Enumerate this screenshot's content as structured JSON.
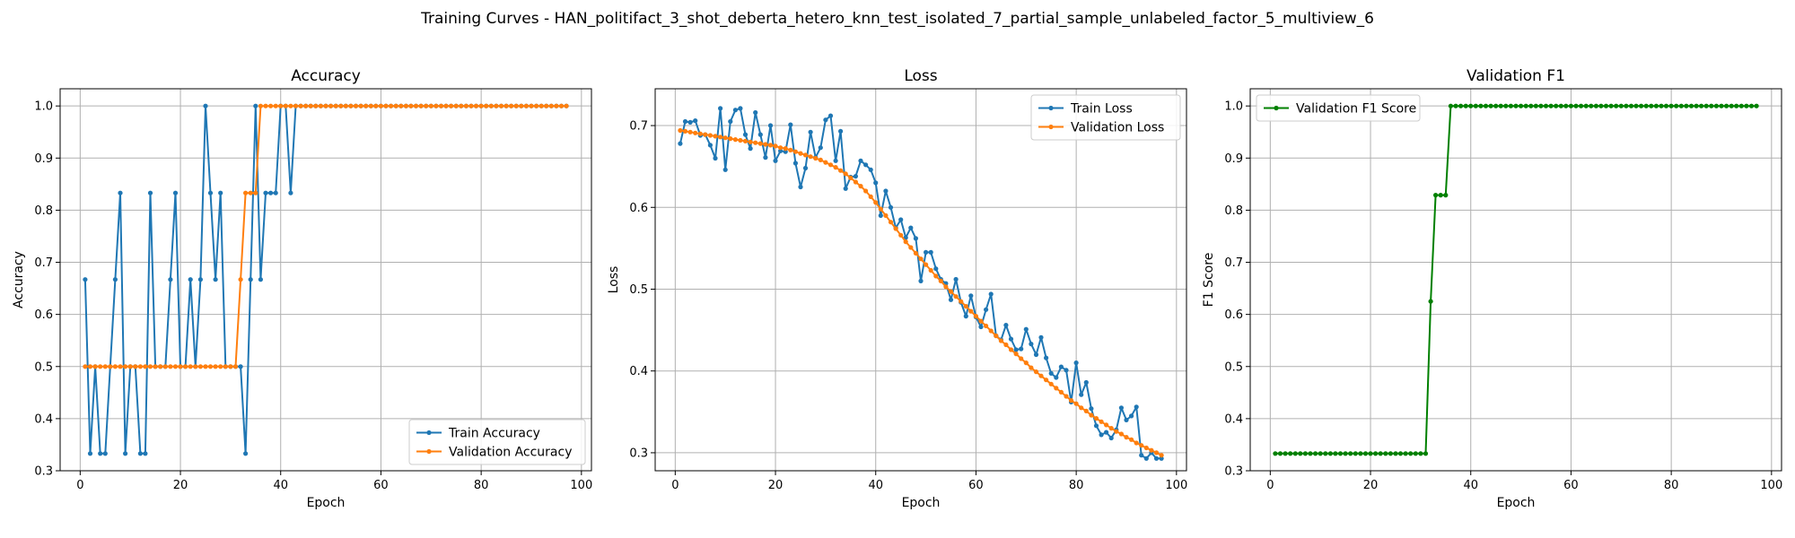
{
  "figure": {
    "suptitle": "Training Curves - HAN_politifact_3_shot_deberta_hetero_knn_test_isolated_7_partial_sample_unlabeled_factor_5_multiview_6"
  },
  "colors": {
    "blue": "#1f77b4",
    "orange": "#ff7f0e",
    "green": "#008000",
    "grid": "#b0b0b0"
  },
  "chart_data": [
    {
      "type": "line",
      "title": "Accuracy",
      "xlabel": "Epoch",
      "ylabel": "Accuracy",
      "xlim": [
        -4,
        102
      ],
      "ylim": [
        0.3,
        1.033
      ],
      "xticks": [
        0,
        20,
        40,
        60,
        80,
        100
      ],
      "yticks": [
        0.3,
        0.4,
        0.5,
        0.6,
        0.7,
        0.8,
        0.9,
        1.0
      ],
      "grid": true,
      "legend": "lower-right",
      "series": [
        {
          "name": "Train Accuracy",
          "color": "#1f77b4",
          "x": [
            1,
            2,
            3,
            4,
            5,
            6,
            7,
            8,
            9,
            10,
            11,
            12,
            13,
            14,
            15,
            16,
            17,
            18,
            19,
            20,
            21,
            22,
            23,
            24,
            25,
            26,
            27,
            28,
            29,
            30,
            31,
            32,
            33,
            34,
            35,
            36,
            37,
            38,
            39,
            40,
            41,
            42,
            43,
            44,
            45,
            46,
            47,
            48,
            49,
            50,
            51,
            52,
            53,
            54,
            55,
            56,
            57,
            58,
            59,
            60,
            61,
            62,
            63,
            64,
            65,
            66,
            67,
            68,
            69,
            70,
            71,
            72,
            73,
            74,
            75,
            76,
            77,
            78,
            79,
            80,
            81,
            82,
            83,
            84,
            85,
            86,
            87,
            88,
            89,
            90,
            91,
            92,
            93,
            94,
            95,
            96,
            97
          ],
          "y": [
            0.667,
            0.333,
            0.5,
            0.333,
            0.333,
            0.5,
            0.667,
            0.833,
            0.333,
            0.5,
            0.5,
            0.333,
            0.333,
            0.833,
            0.5,
            0.5,
            0.5,
            0.667,
            0.833,
            0.5,
            0.5,
            0.667,
            0.5,
            0.667,
            1.0,
            0.833,
            0.667,
            0.833,
            0.5,
            0.5,
            0.5,
            0.5,
            0.333,
            0.667,
            1.0,
            0.667,
            0.833,
            0.833,
            0.833,
            1.0,
            1.0,
            0.833,
            1.0,
            1.0,
            1.0,
            1.0,
            1.0,
            1.0,
            1.0,
            1.0,
            1.0,
            1.0,
            1.0,
            1.0,
            1.0,
            1.0,
            1.0,
            1.0,
            1.0,
            1.0,
            1.0,
            1.0,
            1.0,
            1.0,
            1.0,
            1.0,
            1.0,
            1.0,
            1.0,
            1.0,
            1.0,
            1.0,
            1.0,
            1.0,
            1.0,
            1.0,
            1.0,
            1.0,
            1.0,
            1.0,
            1.0,
            1.0,
            1.0,
            1.0,
            1.0,
            1.0,
            1.0,
            1.0,
            1.0,
            1.0,
            1.0,
            1.0,
            1.0,
            1.0,
            1.0,
            1.0,
            1.0
          ]
        },
        {
          "name": "Validation Accuracy",
          "color": "#ff7f0e",
          "x": [
            1,
            2,
            3,
            4,
            5,
            6,
            7,
            8,
            9,
            10,
            11,
            12,
            13,
            14,
            15,
            16,
            17,
            18,
            19,
            20,
            21,
            22,
            23,
            24,
            25,
            26,
            27,
            28,
            29,
            30,
            31,
            32,
            33,
            34,
            35,
            36,
            37,
            38,
            39,
            40,
            41,
            42,
            43,
            44,
            45,
            46,
            47,
            48,
            49,
            50,
            51,
            52,
            53,
            54,
            55,
            56,
            57,
            58,
            59,
            60,
            61,
            62,
            63,
            64,
            65,
            66,
            67,
            68,
            69,
            70,
            71,
            72,
            73,
            74,
            75,
            76,
            77,
            78,
            79,
            80,
            81,
            82,
            83,
            84,
            85,
            86,
            87,
            88,
            89,
            90,
            91,
            92,
            93,
            94,
            95,
            96,
            97
          ],
          "y": [
            0.5,
            0.5,
            0.5,
            0.5,
            0.5,
            0.5,
            0.5,
            0.5,
            0.5,
            0.5,
            0.5,
            0.5,
            0.5,
            0.5,
            0.5,
            0.5,
            0.5,
            0.5,
            0.5,
            0.5,
            0.5,
            0.5,
            0.5,
            0.5,
            0.5,
            0.5,
            0.5,
            0.5,
            0.5,
            0.5,
            0.5,
            0.667,
            0.833,
            0.833,
            0.833,
            1.0,
            1.0,
            1.0,
            1.0,
            1.0,
            1.0,
            1.0,
            1.0,
            1.0,
            1.0,
            1.0,
            1.0,
            1.0,
            1.0,
            1.0,
            1.0,
            1.0,
            1.0,
            1.0,
            1.0,
            1.0,
            1.0,
            1.0,
            1.0,
            1.0,
            1.0,
            1.0,
            1.0,
            1.0,
            1.0,
            1.0,
            1.0,
            1.0,
            1.0,
            1.0,
            1.0,
            1.0,
            1.0,
            1.0,
            1.0,
            1.0,
            1.0,
            1.0,
            1.0,
            1.0,
            1.0,
            1.0,
            1.0,
            1.0,
            1.0,
            1.0,
            1.0,
            1.0,
            1.0,
            1.0,
            1.0,
            1.0,
            1.0,
            1.0,
            1.0,
            1.0,
            1.0
          ]
        }
      ]
    },
    {
      "type": "line",
      "title": "Loss",
      "xlabel": "Epoch",
      "ylabel": "Loss",
      "xlim": [
        -4,
        102
      ],
      "ylim": [
        0.278,
        0.745
      ],
      "xticks": [
        0,
        20,
        40,
        60,
        80,
        100
      ],
      "yticks": [
        0.3,
        0.4,
        0.5,
        0.6,
        0.7
      ],
      "grid": true,
      "legend": "upper-right",
      "series": [
        {
          "name": "Train Loss",
          "color": "#1f77b4",
          "x": [
            1,
            2,
            3,
            4,
            5,
            6,
            7,
            8,
            9,
            10,
            11,
            12,
            13,
            14,
            15,
            16,
            17,
            18,
            19,
            20,
            21,
            22,
            23,
            24,
            25,
            26,
            27,
            28,
            29,
            30,
            31,
            32,
            33,
            34,
            35,
            36,
            37,
            38,
            39,
            40,
            41,
            42,
            43,
            44,
            45,
            46,
            47,
            48,
            49,
            50,
            51,
            52,
            53,
            54,
            55,
            56,
            57,
            58,
            59,
            60,
            61,
            62,
            63,
            64,
            65,
            66,
            67,
            68,
            69,
            70,
            71,
            72,
            73,
            74,
            75,
            76,
            77,
            78,
            79,
            80,
            81,
            82,
            83,
            84,
            85,
            86,
            87,
            88,
            89,
            90,
            91,
            92,
            93,
            94,
            95,
            96,
            97
          ],
          "y": [
            0.678,
            0.705,
            0.704,
            0.706,
            0.688,
            0.689,
            0.676,
            0.66,
            0.721,
            0.646,
            0.705,
            0.719,
            0.721,
            0.689,
            0.672,
            0.716,
            0.689,
            0.661,
            0.7,
            0.657,
            0.669,
            0.668,
            0.701,
            0.654,
            0.625,
            0.648,
            0.692,
            0.661,
            0.673,
            0.707,
            0.712,
            0.657,
            0.693,
            0.623,
            0.637,
            0.638,
            0.657,
            0.652,
            0.646,
            0.63,
            0.59,
            0.62,
            0.6,
            0.575,
            0.585,
            0.563,
            0.575,
            0.562,
            0.51,
            0.545,
            0.545,
            0.525,
            0.512,
            0.507,
            0.487,
            0.512,
            0.484,
            0.467,
            0.492,
            0.466,
            0.454,
            0.475,
            0.494,
            0.443,
            0.438,
            0.456,
            0.439,
            0.426,
            0.427,
            0.451,
            0.433,
            0.42,
            0.441,
            0.416,
            0.397,
            0.392,
            0.405,
            0.401,
            0.362,
            0.41,
            0.371,
            0.386,
            0.354,
            0.333,
            0.322,
            0.325,
            0.318,
            0.328,
            0.355,
            0.34,
            0.345,
            0.356,
            0.297,
            0.293,
            0.3,
            0.293,
            0.293
          ]
        },
        {
          "name": "Validation Loss",
          "color": "#ff7f0e",
          "x": [
            1,
            2,
            3,
            4,
            5,
            6,
            7,
            8,
            9,
            10,
            11,
            12,
            13,
            14,
            15,
            16,
            17,
            18,
            19,
            20,
            21,
            22,
            23,
            24,
            25,
            26,
            27,
            28,
            29,
            30,
            31,
            32,
            33,
            34,
            35,
            36,
            37,
            38,
            39,
            40,
            41,
            42,
            43,
            44,
            45,
            46,
            47,
            48,
            49,
            50,
            51,
            52,
            53,
            54,
            55,
            56,
            57,
            58,
            59,
            60,
            61,
            62,
            63,
            64,
            65,
            66,
            67,
            68,
            69,
            70,
            71,
            72,
            73,
            74,
            75,
            76,
            77,
            78,
            79,
            80,
            81,
            82,
            83,
            84,
            85,
            86,
            87,
            88,
            89,
            90,
            91,
            92,
            93,
            94,
            95,
            96,
            97
          ],
          "y": [
            0.694,
            0.693,
            0.692,
            0.691,
            0.69,
            0.689,
            0.688,
            0.687,
            0.686,
            0.685,
            0.684,
            0.683,
            0.682,
            0.681,
            0.68,
            0.679,
            0.678,
            0.677,
            0.676,
            0.675,
            0.673,
            0.672,
            0.67,
            0.668,
            0.666,
            0.664,
            0.662,
            0.66,
            0.658,
            0.655,
            0.652,
            0.649,
            0.645,
            0.641,
            0.636,
            0.631,
            0.626,
            0.62,
            0.613,
            0.606,
            0.598,
            0.59,
            0.582,
            0.574,
            0.566,
            0.558,
            0.551,
            0.544,
            0.537,
            0.53,
            0.523,
            0.516,
            0.51,
            0.503,
            0.497,
            0.491,
            0.485,
            0.479,
            0.473,
            0.467,
            0.461,
            0.455,
            0.449,
            0.443,
            0.437,
            0.432,
            0.426,
            0.421,
            0.415,
            0.41,
            0.404,
            0.399,
            0.394,
            0.389,
            0.384,
            0.379,
            0.374,
            0.369,
            0.364,
            0.36,
            0.355,
            0.351,
            0.346,
            0.342,
            0.338,
            0.334,
            0.33,
            0.326,
            0.323,
            0.319,
            0.316,
            0.312,
            0.309,
            0.306,
            0.303,
            0.3,
            0.297
          ]
        }
      ]
    },
    {
      "type": "line",
      "title": "Validation F1",
      "xlabel": "Epoch",
      "ylabel": "F1 Score",
      "xlim": [
        -4,
        102
      ],
      "ylim": [
        0.3,
        1.033
      ],
      "xticks": [
        0,
        20,
        40,
        60,
        80,
        100
      ],
      "yticks": [
        0.3,
        0.4,
        0.5,
        0.6,
        0.7,
        0.8,
        0.9,
        1.0
      ],
      "grid": true,
      "legend": "upper-left",
      "series": [
        {
          "name": "Validation F1 Score",
          "color": "#008000",
          "x": [
            1,
            2,
            3,
            4,
            5,
            6,
            7,
            8,
            9,
            10,
            11,
            12,
            13,
            14,
            15,
            16,
            17,
            18,
            19,
            20,
            21,
            22,
            23,
            24,
            25,
            26,
            27,
            28,
            29,
            30,
            31,
            32,
            33,
            34,
            35,
            36,
            37,
            38,
            39,
            40,
            41,
            42,
            43,
            44,
            45,
            46,
            47,
            48,
            49,
            50,
            51,
            52,
            53,
            54,
            55,
            56,
            57,
            58,
            59,
            60,
            61,
            62,
            63,
            64,
            65,
            66,
            67,
            68,
            69,
            70,
            71,
            72,
            73,
            74,
            75,
            76,
            77,
            78,
            79,
            80,
            81,
            82,
            83,
            84,
            85,
            86,
            87,
            88,
            89,
            90,
            91,
            92,
            93,
            94,
            95,
            96,
            97
          ],
          "y": [
            0.333,
            0.333,
            0.333,
            0.333,
            0.333,
            0.333,
            0.333,
            0.333,
            0.333,
            0.333,
            0.333,
            0.333,
            0.333,
            0.333,
            0.333,
            0.333,
            0.333,
            0.333,
            0.333,
            0.333,
            0.333,
            0.333,
            0.333,
            0.333,
            0.333,
            0.333,
            0.333,
            0.333,
            0.333,
            0.333,
            0.333,
            0.625,
            0.829,
            0.829,
            0.829,
            1.0,
            1.0,
            1.0,
            1.0,
            1.0,
            1.0,
            1.0,
            1.0,
            1.0,
            1.0,
            1.0,
            1.0,
            1.0,
            1.0,
            1.0,
            1.0,
            1.0,
            1.0,
            1.0,
            1.0,
            1.0,
            1.0,
            1.0,
            1.0,
            1.0,
            1.0,
            1.0,
            1.0,
            1.0,
            1.0,
            1.0,
            1.0,
            1.0,
            1.0,
            1.0,
            1.0,
            1.0,
            1.0,
            1.0,
            1.0,
            1.0,
            1.0,
            1.0,
            1.0,
            1.0,
            1.0,
            1.0,
            1.0,
            1.0,
            1.0,
            1.0,
            1.0,
            1.0,
            1.0,
            1.0,
            1.0,
            1.0,
            1.0,
            1.0,
            1.0,
            1.0,
            1.0
          ]
        }
      ]
    }
  ]
}
